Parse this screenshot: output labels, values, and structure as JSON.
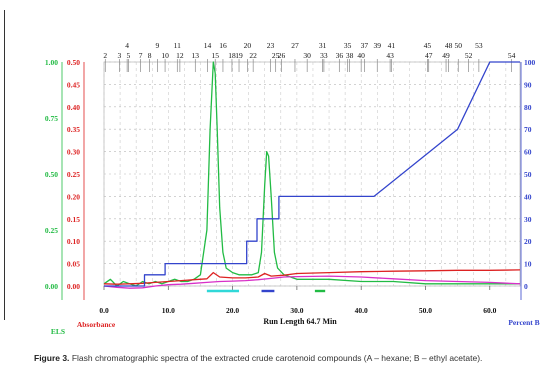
{
  "chart_data": {
    "type": "line",
    "xlabel": "Run Length 64.7 Min",
    "xlim": [
      0,
      64.7
    ],
    "x_ticks": [
      "0.0",
      "10.0",
      "20.0",
      "30.0",
      "40.0",
      "50.0",
      "60.0"
    ],
    "x_tick_values": [
      0,
      10,
      20,
      30,
      40,
      50,
      60
    ],
    "left_axis_els": {
      "label": "ELS",
      "ticks": [
        "1.00",
        "0.75",
        "0.50",
        "0.25",
        "0.00"
      ],
      "color": "#22bb44",
      "range": [
        0,
        1
      ]
    },
    "left_axis_abs": {
      "label": "Absorbance",
      "ticks": [
        "0.50",
        "0.45",
        "0.40",
        "0.35",
        "0.30",
        "0.25",
        "0.20",
        "0.15",
        "0.10",
        "0.05",
        "0.00"
      ],
      "color": "#dd2222",
      "range": [
        0,
        0.5
      ]
    },
    "right_axis": {
      "label": "Percent B",
      "ticks": [
        "100",
        "90",
        "80",
        "70",
        "60",
        "50",
        "40",
        "30",
        "20",
        "10",
        "0"
      ],
      "color": "#3344cc",
      "range": [
        0,
        100
      ]
    },
    "fraction_labels_top": [
      "4",
      "9",
      "11",
      "14",
      "16",
      "20",
      "23",
      "27",
      "31",
      "35",
      "37",
      "39",
      "41",
      "45",
      "48",
      "50",
      "53"
    ],
    "fraction_labels_top_x": [
      3.6,
      8.3,
      11.4,
      16.1,
      18.5,
      22.3,
      25.9,
      29.7,
      34.0,
      37.9,
      40.5,
      42.5,
      44.7,
      50.3,
      53.6,
      55.1,
      58.3
    ],
    "fraction_labels_bottom": [
      "2",
      "3",
      "5",
      "7",
      "8",
      "10",
      "12",
      "13",
      "15",
      "18",
      "19",
      "22",
      "25",
      "26",
      "30",
      "33",
      "36",
      "38",
      "40",
      "43",
      "47",
      "49",
      "52",
      "54"
    ],
    "fraction_labels_bottom_x": [
      0.2,
      2.4,
      3.8,
      5.7,
      7.1,
      9.5,
      11.8,
      14.2,
      17.3,
      19.9,
      21.0,
      23.2,
      26.7,
      27.6,
      31.6,
      34.2,
      36.6,
      38.2,
      40.0,
      44.5,
      50.5,
      53.2,
      56.7,
      63.4
    ],
    "series": [
      {
        "name": "ELS",
        "color": "#22bb44",
        "axis": "els",
        "x": [
          0,
          1,
          2,
          3,
          4,
          5,
          6,
          7,
          8,
          9,
          10,
          11,
          12,
          13,
          14,
          15,
          16,
          16.5,
          17,
          17.3,
          17.6,
          18,
          18.5,
          19,
          20,
          21,
          22,
          23,
          24,
          24.5,
          25,
          25.3,
          25.6,
          26,
          26.5,
          27,
          28,
          30,
          35,
          40,
          45,
          50,
          55,
          60,
          64.7
        ],
        "y": [
          0.01,
          0.03,
          0.0,
          0.02,
          0.01,
          0.0,
          0.02,
          0.01,
          0.02,
          0.01,
          0.02,
          0.03,
          0.02,
          0.02,
          0.03,
          0.05,
          0.25,
          0.7,
          1.0,
          0.95,
          0.7,
          0.35,
          0.15,
          0.08,
          0.06,
          0.05,
          0.05,
          0.05,
          0.06,
          0.15,
          0.45,
          0.6,
          0.58,
          0.4,
          0.15,
          0.08,
          0.05,
          0.03,
          0.03,
          0.02,
          0.02,
          0.01,
          0.01,
          0.01,
          0.01
        ]
      },
      {
        "name": "Absorbance",
        "color": "#dd2222",
        "axis": "abs",
        "x": [
          0,
          2,
          4,
          6,
          8,
          10,
          12,
          14,
          16,
          17,
          18,
          20,
          22,
          24,
          25,
          26,
          28,
          30,
          35,
          40,
          45,
          50,
          55,
          60,
          64.7
        ],
        "y": [
          0.005,
          0.004,
          0.005,
          0.006,
          0.008,
          0.01,
          0.012,
          0.014,
          0.016,
          0.03,
          0.02,
          0.018,
          0.018,
          0.02,
          0.028,
          0.022,
          0.024,
          0.028,
          0.03,
          0.032,
          0.033,
          0.034,
          0.035,
          0.035,
          0.036
        ]
      },
      {
        "name": "Magenta trace",
        "color": "#d830c8",
        "axis": "abs",
        "x": [
          0,
          2,
          4,
          6,
          8,
          10,
          12,
          14,
          16,
          18,
          20,
          22,
          24,
          26,
          28,
          30,
          35,
          40,
          45,
          50,
          55,
          60,
          64.7
        ],
        "y": [
          0.0,
          -0.003,
          -0.005,
          -0.004,
          0.0,
          0.003,
          0.004,
          0.006,
          0.008,
          0.01,
          0.011,
          0.012,
          0.014,
          0.017,
          0.02,
          0.021,
          0.022,
          0.02,
          0.016,
          0.012,
          0.01,
          0.008,
          0.005
        ]
      },
      {
        "name": "Percent B",
        "color": "#3344cc",
        "axis": "right",
        "x": [
          0,
          6.3,
          6.3,
          9.5,
          9.5,
          22.2,
          22.2,
          23.8,
          23.8,
          27.2,
          27.2,
          30.4,
          30.4,
          42.0,
          55.0,
          60.0,
          64.7
        ],
        "y": [
          0,
          0,
          5,
          5,
          10,
          10,
          20,
          20,
          30,
          30,
          40,
          40,
          40,
          40,
          70,
          100,
          100
        ]
      }
    ],
    "fraction_bars": [
      {
        "color": "#30d8d8",
        "x0": 16.0,
        "x1": 21.0
      },
      {
        "color": "#3344cc",
        "x0": 24.5,
        "x1": 26.5
      },
      {
        "color": "#22bb44",
        "x0": 32.8,
        "x1": 34.4
      }
    ],
    "grid": true
  },
  "caption": {
    "label": "Figure 3.",
    "text": "Flash chromatographic spectra of the extracted crude carotenoid compounds (A – hexane; B – ethyl acetate)."
  }
}
